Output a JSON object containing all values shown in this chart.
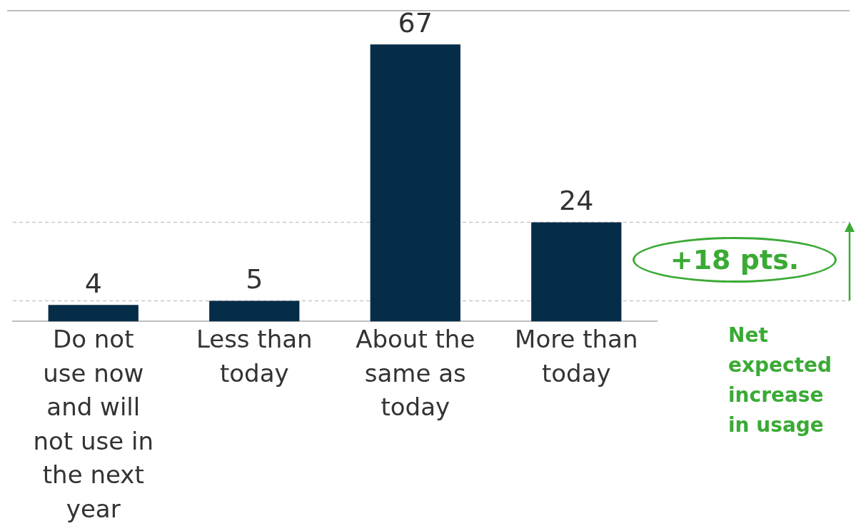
{
  "chart_data": {
    "type": "bar",
    "categories": [
      "Do not use now and will not use in the next year",
      "Less than today",
      "About the same as today",
      "More than today"
    ],
    "values": [
      4,
      5,
      67,
      24
    ],
    "color": "#062d47",
    "ylim": [
      0,
      75
    ],
    "data_labels": true,
    "grid": false,
    "legend": false,
    "ref_lines": [
      {
        "axis": "y",
        "value": 24,
        "color": "#c8c8c8",
        "line_style": "dashed"
      },
      {
        "axis": "y",
        "value": 5,
        "color": "#c8c8c8",
        "line_style": "dashed"
      }
    ],
    "annotations": [
      "+18 pts.",
      "Net expected increase in usage"
    ]
  }
}
